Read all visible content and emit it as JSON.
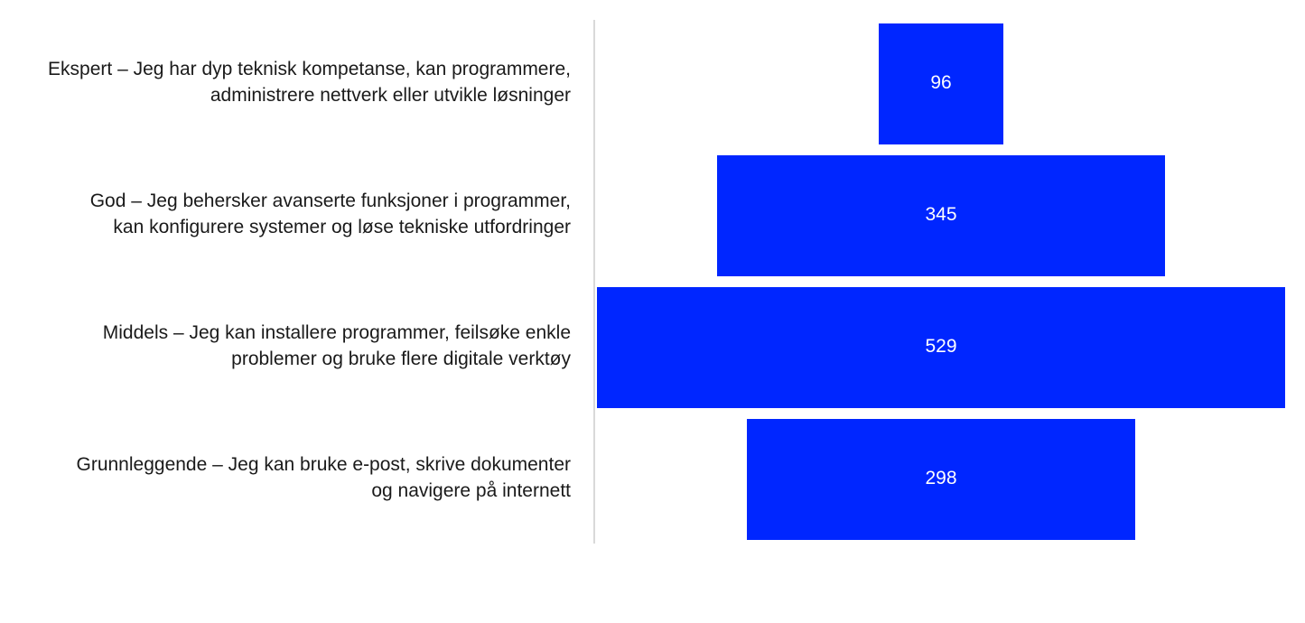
{
  "chart_data": {
    "type": "bar",
    "orientation": "horizontal-centered",
    "categories": [
      [
        "Ekspert – Jeg har dyp teknisk kompetanse, kan programmere,",
        "administrere nettverk eller utvikle løsninger"
      ],
      [
        "God – Jeg behersker avanserte funksjoner i programmer,",
        "kan konfigurere systemer og løse tekniske utfordringer"
      ],
      [
        "Middels – Jeg kan installere programmer, feilsøke enkle",
        "problemer og bruke flere digitale verktøy"
      ],
      [
        "Grunnleggende – Jeg kan bruke e-post, skrive dokumenter",
        "og navigere på internett"
      ]
    ],
    "values": [
      96,
      345,
      529,
      298
    ],
    "bar_color": "#0026ff",
    "label_color": "#ffffff",
    "title": "",
    "xlabel": "",
    "ylabel": "",
    "grid": false,
    "legend": "none"
  }
}
